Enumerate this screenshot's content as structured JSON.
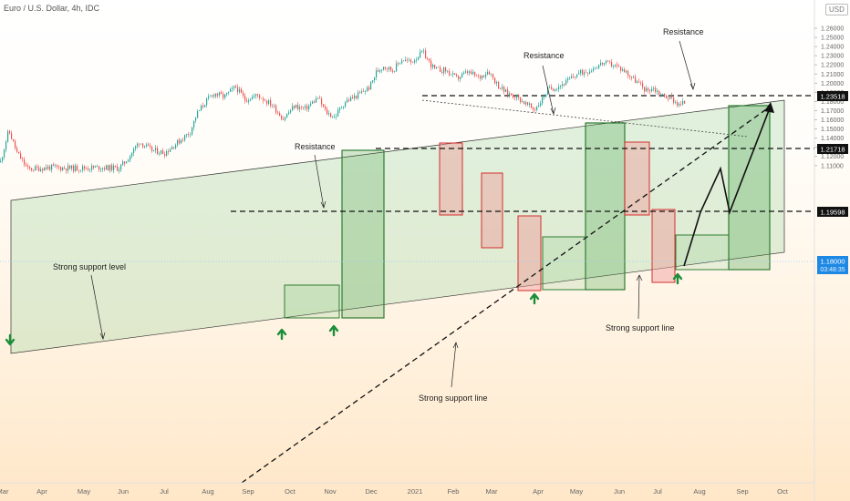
{
  "header": {
    "symbol_line": "Euro / U.S. Dollar, 4h, IDC",
    "currency_badge": "USD"
  },
  "chart_data": {
    "type": "candlestick",
    "title": "Euro / U.S. Dollar, 4h, IDC",
    "x_ticks": [
      "Mar",
      "Apr",
      "May",
      "Jun",
      "Jul",
      "Aug",
      "Sep",
      "Oct",
      "Nov",
      "Dec",
      "2021",
      "Feb",
      "Mar",
      "Apr",
      "May",
      "Jun",
      "Jul",
      "Aug",
      "Sep",
      "Oct"
    ],
    "y_ticks": [
      "1.26000",
      "1.25000",
      "1.24000",
      "1.23000",
      "1.22000",
      "1.21000",
      "1.20000",
      "1.19000",
      "1.18000",
      "1.17000",
      "1.16000",
      "1.15000",
      "1.14000",
      "1.13000",
      "1.12000",
      "1.11000"
    ],
    "ylim": [
      1.106,
      1.266
    ],
    "price_path": [
      [
        0,
        1.114
      ],
      [
        9,
        1.1485
      ],
      [
        18,
        1.124
      ],
      [
        30,
        1.106
      ],
      [
        55,
        1.108
      ],
      [
        80,
        1.107
      ],
      [
        110,
        1.108
      ],
      [
        130,
        1.107
      ],
      [
        140,
        1.118
      ],
      [
        152,
        1.136
      ],
      [
        165,
        1.127
      ],
      [
        180,
        1.124
      ],
      [
        195,
        1.136
      ],
      [
        208,
        1.147
      ],
      [
        215,
        1.166
      ],
      [
        225,
        1.18
      ],
      [
        235,
        1.189
      ],
      [
        245,
        1.185
      ],
      [
        258,
        1.196
      ],
      [
        268,
        1.182
      ],
      [
        282,
        1.187
      ],
      [
        298,
        1.176
      ],
      [
        310,
        1.161
      ],
      [
        322,
        1.175
      ],
      [
        334,
        1.172
      ],
      [
        348,
        1.184
      ],
      [
        357,
        1.168
      ],
      [
        366,
        1.163
      ],
      [
        378,
        1.18
      ],
      [
        392,
        1.187
      ],
      [
        405,
        1.196
      ],
      [
        412,
        1.212
      ],
      [
        420,
        1.219
      ],
      [
        430,
        1.214
      ],
      [
        440,
        1.226
      ],
      [
        450,
        1.223
      ],
      [
        463,
        1.234
      ],
      [
        470,
        1.223
      ],
      [
        476,
        1.215
      ],
      [
        488,
        1.214
      ],
      [
        500,
        1.205
      ],
      [
        512,
        1.212
      ],
      [
        525,
        1.206
      ],
      [
        535,
        1.214
      ],
      [
        545,
        1.198
      ],
      [
        555,
        1.189
      ],
      [
        565,
        1.186
      ],
      [
        575,
        1.178
      ],
      [
        585,
        1.171
      ],
      [
        593,
        1.181
      ],
      [
        600,
        1.193
      ],
      [
        610,
        1.196
      ],
      [
        620,
        1.201
      ],
      [
        632,
        1.21
      ],
      [
        645,
        1.214
      ],
      [
        660,
        1.222
      ],
      [
        672,
        1.22
      ],
      [
        685,
        1.213
      ],
      [
        697,
        1.202
      ],
      [
        708,
        1.192
      ],
      [
        715,
        1.195
      ],
      [
        725,
        1.187
      ],
      [
        735,
        1.184
      ],
      [
        744,
        1.176
      ],
      [
        750,
        1.179
      ]
    ],
    "horizontal_levels": [
      {
        "value": 1.23518,
        "label": "1.23518"
      },
      {
        "value": 1.21718,
        "label": "1.21718"
      },
      {
        "value": 1.19598,
        "label": "1.19598"
      }
    ],
    "last_price": {
      "value": 1.18,
      "label": "1.18000",
      "countdown": "03:48:35"
    },
    "annotations": [
      {
        "text": "Resistance",
        "kind": "label"
      },
      {
        "text": "Resistance",
        "kind": "label"
      },
      {
        "text": "Resistance",
        "kind": "label"
      },
      {
        "text": "Strong support level",
        "kind": "label"
      },
      {
        "text": "Strong support line",
        "kind": "label"
      },
      {
        "text": "Strong support line",
        "kind": "label"
      }
    ],
    "projection_path": [
      [
        750,
        1.178
      ],
      [
        768,
        1.195
      ],
      [
        790,
        1.212
      ],
      [
        800,
        1.196
      ],
      [
        845,
        1.235
      ]
    ],
    "grid": false,
    "legend": "none",
    "colors": {
      "up": "#26a69a",
      "down": "#ef5350",
      "channel_fill": "#a5d6a7",
      "bull_box": "#4caf50",
      "bear_box": "#e57373",
      "arrow": "#1b8e3a",
      "last_price_bg": "#1e88e5"
    }
  }
}
